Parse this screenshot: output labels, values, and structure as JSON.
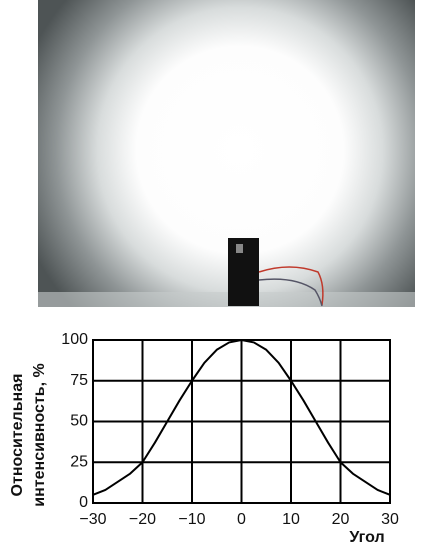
{
  "chart_data": {
    "type": "line",
    "xlabel": "Угол",
    "ylabel": [
      "Относительная",
      "интенсивность, %"
    ],
    "x": [
      -30,
      -27.5,
      -25,
      -22.5,
      -20,
      -17.5,
      -15,
      -12.5,
      -10,
      -7.5,
      -5,
      -2.5,
      0,
      2.5,
      5,
      7.5,
      10,
      12.5,
      15,
      17.5,
      20,
      22.5,
      25,
      27.5,
      30
    ],
    "values": [
      5,
      8,
      13,
      18,
      25,
      37,
      50,
      63,
      75,
      86,
      94,
      98.5,
      100,
      98.5,
      94,
      86,
      75,
      63,
      50,
      37,
      25,
      18,
      13,
      8,
      5
    ],
    "color": "#000000",
    "xlim": [
      -30,
      30
    ],
    "xticks": [
      {
        "value": -30,
        "label": "−30"
      },
      {
        "value": -20,
        "label": "−20"
      },
      {
        "value": -10,
        "label": "−10"
      },
      0,
      10,
      20,
      30
    ],
    "ylim": [
      0,
      100
    ],
    "yticks": [
      0,
      25,
      50,
      75,
      100
    ],
    "grid": true
  }
}
